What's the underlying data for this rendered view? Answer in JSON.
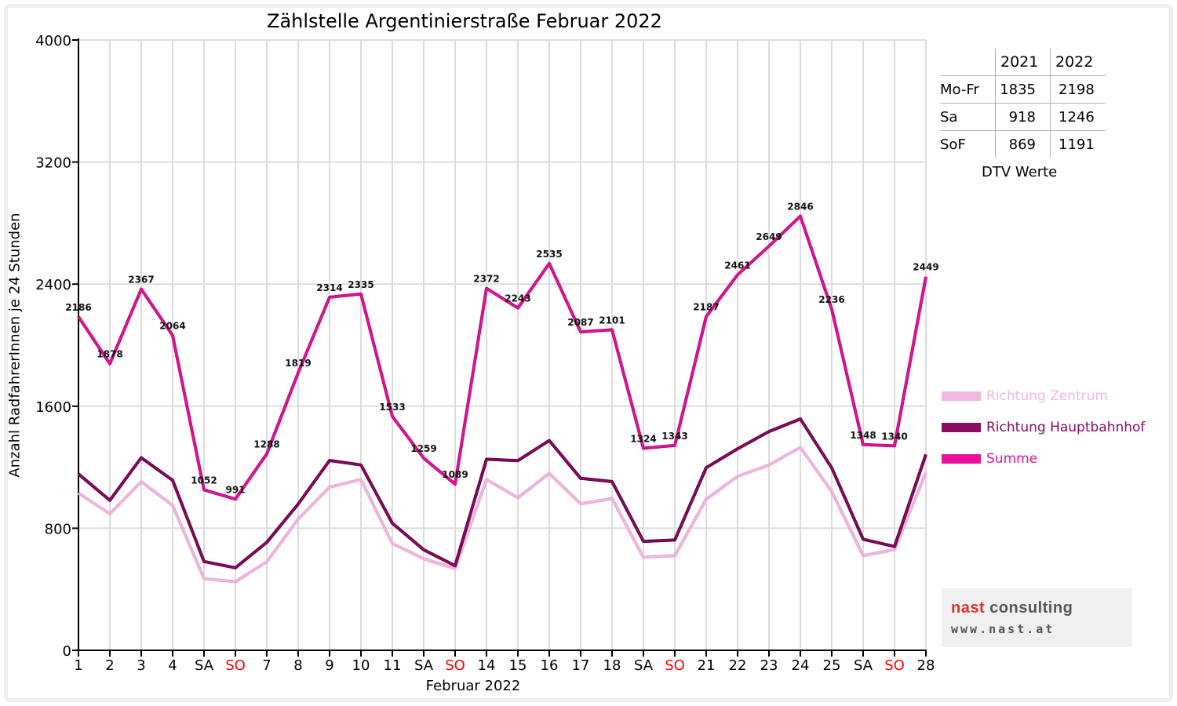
{
  "chart_data": {
    "type": "line",
    "title": "Zählstelle Argentinierstraße Februar 2022",
    "xlabel": "Februar 2022",
    "ylabel": "Anzahl RadfahrerInnen je 24 Stunden",
    "ylim": [
      0,
      4000
    ],
    "yticks": [
      0,
      800,
      1600,
      2400,
      3200,
      4000
    ],
    "grid": true,
    "legend_position": "right",
    "categories": [
      "1",
      "2",
      "3",
      "4",
      "SA",
      "SO",
      "7",
      "8",
      "9",
      "10",
      "11",
      "SA",
      "SO",
      "14",
      "15",
      "16",
      "17",
      "18",
      "SA",
      "SO",
      "21",
      "22",
      "23",
      "24",
      "25",
      "SA",
      "SO",
      "28"
    ],
    "weekend_label_color": "#ff0000",
    "series": [
      {
        "name": "Richtung Zentrum",
        "color": "#f0b8e0",
        "values": [
          1030,
          895,
          1105,
          950,
          470,
          450,
          580,
          860,
          1070,
          1120,
          700,
          600,
          535,
          1120,
          1000,
          1160,
          960,
          995,
          610,
          620,
          990,
          1140,
          1215,
          1330,
          1040,
          620,
          660,
          1165
        ]
      },
      {
        "name": "Richtung Hauptbahnhof",
        "color": "#8b0a62",
        "values": [
          1156,
          983,
          1262,
          1114,
          582,
          541,
          708,
          959,
          1244,
          1215,
          833,
          659,
          554,
          1252,
          1243,
          1375,
          1127,
          1106,
          714,
          723,
          1197,
          1321,
          1434,
          1516,
          1196,
          728,
          680,
          1284
        ]
      },
      {
        "name": "Summe",
        "color": "#e6129a",
        "values": [
          2186,
          1878,
          2367,
          2064,
          1052,
          991,
          1288,
          1819,
          2314,
          2335,
          1533,
          1259,
          1089,
          2372,
          2243,
          2535,
          2087,
          2101,
          1324,
          1343,
          2187,
          2461,
          2649,
          2846,
          2236,
          1348,
          1340,
          2449
        ],
        "labels": [
          "2186",
          "1878",
          "2367",
          "2064",
          "1052",
          "991",
          "1288",
          "1819",
          "2314",
          "2335",
          "1533",
          "1259",
          "1089",
          "2372",
          "2243",
          "2535",
          "2087",
          "2101",
          "1324",
          "1343",
          "2187",
          "2461",
          "2649",
          "2846",
          "2236",
          "1348",
          "1340",
          "2449"
        ]
      }
    ]
  },
  "dtv_table": {
    "headers": [
      "",
      "2021",
      "2022"
    ],
    "rows": [
      {
        "label": "Mo-Fr",
        "v2021": "1835",
        "v2022": "2198"
      },
      {
        "label": "Sa",
        "v2021": "918",
        "v2022": "1246"
      },
      {
        "label": "SoF",
        "v2021": "869",
        "v2022": "1191"
      }
    ],
    "caption": "DTV Werte"
  },
  "logo": {
    "name_part1": "nast",
    "name_part2": " consulting",
    "website": "www.nast.at"
  }
}
